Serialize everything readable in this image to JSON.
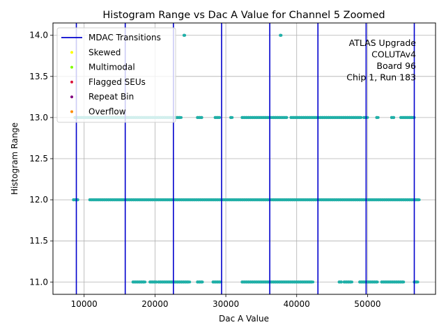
{
  "chart_data": {
    "type": "scatter",
    "title": "Histogram Range vs Dac A Value for Channel 5 Zoomed",
    "xlabel": "Dac A Value",
    "ylabel": "Histogram Range",
    "xlim": [
      5600,
      59600
    ],
    "ylim": [
      10.85,
      14.15
    ],
    "x_ticks": [
      10000,
      20000,
      30000,
      40000,
      50000
    ],
    "x_tick_labels": [
      "10000",
      "20000",
      "30000",
      "40000",
      "50000"
    ],
    "y_ticks": [
      11.0,
      11.5,
      12.0,
      12.5,
      13.0,
      13.5,
      14.0
    ],
    "y_tick_labels": [
      "11.0",
      "11.5",
      "12.0",
      "12.5",
      "13.0",
      "13.5",
      "14.0"
    ],
    "grid": true,
    "legend_position": "top-left",
    "annotation_lines": [
      "ATLAS Upgrade",
      "COLUTAv4",
      "Board 96",
      "Chip 1, Run 183"
    ],
    "vertical_lines": {
      "name": "MDAC Transitions",
      "color": "#0000cd",
      "x": [
        8900,
        15800,
        22600,
        29400,
        36200,
        43000,
        49800,
        56600
      ]
    },
    "legend": [
      {
        "label": "MDAC Transitions",
        "kind": "line",
        "color": "#0000cd"
      },
      {
        "label": "Skewed",
        "kind": "dot",
        "color": "#ffff00"
      },
      {
        "label": "Multimodal",
        "kind": "dot",
        "color": "#7fff00"
      },
      {
        "label": "Flagged SEUs",
        "kind": "dot",
        "color": "#dc143c"
      },
      {
        "label": "Repeat Bin",
        "kind": "dot",
        "color": "#800080"
      },
      {
        "label": "Overflow",
        "kind": "dot",
        "color": "#ff8c00"
      }
    ],
    "point_color": "#20b2aa",
    "series": [
      {
        "y": 11.0,
        "ranges": [
          [
            16900,
            18600
          ],
          [
            19300,
            20200
          ],
          [
            20500,
            24900
          ],
          [
            26000,
            26700
          ],
          [
            28200,
            29300
          ],
          [
            32300,
            42300
          ],
          [
            46000,
            46300
          ],
          [
            46700,
            47800
          ],
          [
            48900,
            51400
          ],
          [
            52000,
            55100
          ],
          [
            56600,
            57100
          ]
        ]
      },
      {
        "y": 12.0,
        "ranges": [
          [
            8500,
            9100
          ],
          [
            10800,
            57300
          ]
        ]
      },
      {
        "y": 13.0,
        "ranges": [
          [
            8700,
            23700
          ],
          [
            26000,
            26600
          ],
          [
            28500,
            29100
          ],
          [
            30700,
            30900
          ],
          [
            32300,
            38600
          ],
          [
            39200,
            49100
          ],
          [
            49500,
            50000
          ],
          [
            51300,
            51500
          ],
          [
            53400,
            53700
          ],
          [
            54700,
            56600
          ]
        ]
      },
      {
        "y": 14.0,
        "ranges": [
          [
            24100,
            24200
          ],
          [
            37700,
            37800
          ]
        ]
      }
    ]
  }
}
